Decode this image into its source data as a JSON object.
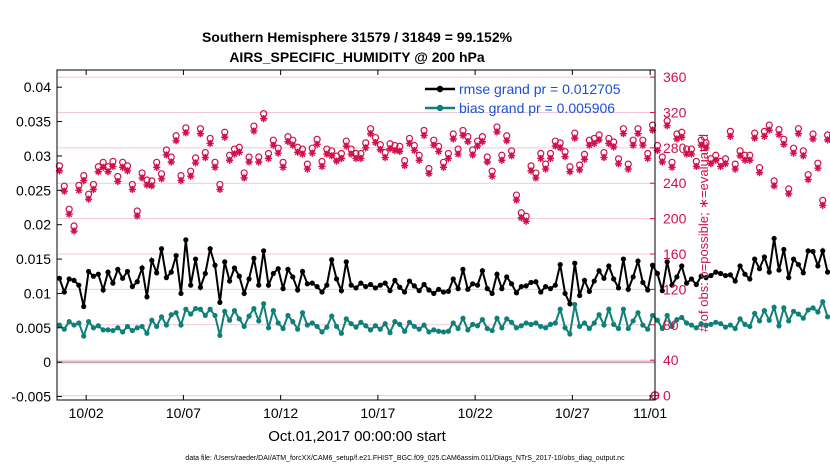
{
  "chart_data": {
    "type": "line",
    "title": "Southern Hemisphere 31579 / 31849 = 99.152%",
    "subtitle": "AIRS_SPECIFIC_HUMIDITY @ 200 hPa",
    "xlabel": "Oct.01,2017 00:00:00 start",
    "ylabel_right": "# of obs: o=possible; ∗=evaluated",
    "footer": "data file: /Users/raeder/DAI/ATM_forcXX/CAM6_setup/f.e21.FHIST_BGC.f09_025.CAM6assim.011/Diags_NTrS_2017-10/obs_diag_output.nc",
    "xlim": [
      0.5,
      31.25
    ],
    "ylim_left": [
      -0.0055,
      0.0425
    ],
    "ylim_right": [
      -5,
      368
    ],
    "x_ticks": [
      {
        "value": 2,
        "label": "10/02"
      },
      {
        "value": 7,
        "label": "10/07"
      },
      {
        "value": 12,
        "label": "10/12"
      },
      {
        "value": 17,
        "label": "10/17"
      },
      {
        "value": 22,
        "label": "10/22"
      },
      {
        "value": 27,
        "label": "10/27"
      },
      {
        "value": 31,
        "label": "11/01"
      }
    ],
    "y_ticks_left": [
      {
        "value": 0.04,
        "label": "0.04"
      },
      {
        "value": 0.035,
        "label": "0.035"
      },
      {
        "value": 0.03,
        "label": "0.03"
      },
      {
        "value": 0.025,
        "label": "0.025"
      },
      {
        "value": 0.02,
        "label": "0.02"
      },
      {
        "value": 0.015,
        "label": "0.015"
      },
      {
        "value": 0.01,
        "label": "0.01"
      },
      {
        "value": 0.005,
        "label": "0.005"
      },
      {
        "value": 0,
        "label": "0"
      },
      {
        "value": -0.005,
        "label": "-0.005"
      }
    ],
    "y_ticks_right": [
      {
        "value": 360,
        "label": "360"
      },
      {
        "value": 320,
        "label": "320"
      },
      {
        "value": 280,
        "label": "280"
      },
      {
        "value": 240,
        "label": "240"
      },
      {
        "value": 200,
        "label": "200"
      },
      {
        "value": 160,
        "label": "160"
      },
      {
        "value": 120,
        "label": "120"
      },
      {
        "value": 80,
        "label": "80"
      },
      {
        "value": 40,
        "label": "40"
      },
      {
        "value": 0,
        "label": "0"
      }
    ],
    "x_start": 0.625,
    "x_step": 0.25,
    "series": [
      {
        "name": "rmse",
        "legend": "rmse grand pr = 0.012705",
        "axis": "left",
        "color": "#000000",
        "values": [
          0.0122,
          0.0102,
          0.0121,
          0.0119,
          0.0112,
          0.0081,
          0.0132,
          0.0125,
          0.0128,
          0.0105,
          0.0131,
          0.0115,
          0.0135,
          0.0122,
          0.0132,
          0.011,
          0.0117,
          0.0137,
          0.0095,
          0.0148,
          0.013,
          0.0165,
          0.0123,
          0.0131,
          0.0155,
          0.01,
          0.0178,
          0.0112,
          0.015,
          0.0109,
          0.0129,
          0.0165,
          0.0141,
          0.0087,
          0.0146,
          0.0118,
          0.0137,
          0.0125,
          0.01,
          0.0121,
          0.0151,
          0.0112,
          0.0162,
          0.0112,
          0.0129,
          0.0136,
          0.0107,
          0.0135,
          0.0124,
          0.0105,
          0.0132,
          0.0114,
          0.0115,
          0.011,
          0.0102,
          0.0112,
          0.0149,
          0.0121,
          0.0104,
          0.0146,
          0.0112,
          0.0108,
          0.0115,
          0.011,
          0.0113,
          0.0108,
          0.0112,
          0.0115,
          0.0104,
          0.0119,
          0.0109,
          0.0102,
          0.0118,
          0.0111,
          0.0104,
          0.0113,
          0.0105,
          0.01,
          0.0106,
          0.0102,
          0.0103,
          0.0121,
          0.0107,
          0.0135,
          0.0106,
          0.0114,
          0.0112,
          0.0133,
          0.0107,
          0.01,
          0.0128,
          0.0107,
          0.0124,
          0.0114,
          0.0101,
          0.011,
          0.0111,
          0.0116,
          0.0117,
          0.0102,
          0.011,
          0.0107,
          0.0112,
          0.0142,
          0.01,
          0.0085,
          0.0144,
          0.0097,
          0.0119,
          0.0103,
          0.0118,
          0.0133,
          0.0122,
          0.014,
          0.0121,
          0.0108,
          0.015,
          0.0106,
          0.0124,
          0.0147,
          0.0116,
          0.0105,
          0.0141,
          0.0129,
          0.0104,
          0.0146,
          0.0112,
          0.0124,
          0.014,
          0.0115,
          0.0121,
          0.0113,
          0.0125,
          0.0123,
          0.0126,
          0.0131,
          0.0129,
          0.0126,
          0.0127,
          0.0118,
          0.014,
          0.0128,
          0.0121,
          0.015,
          0.0136,
          0.0153,
          0.0131,
          0.018,
          0.0134,
          0.0164,
          0.0123,
          0.015,
          0.0142,
          0.013,
          0.0162,
          0.0161,
          0.014,
          0.0162,
          0.0131
        ]
      },
      {
        "name": "bias",
        "legend": "bias grand pr = 0.005906",
        "axis": "left",
        "color": "#0f8079",
        "values": [
          0.0054,
          0.0048,
          0.0059,
          0.0054,
          0.0057,
          0.0038,
          0.0059,
          0.005,
          0.0053,
          0.0047,
          0.0047,
          0.0046,
          0.005,
          0.0044,
          0.0052,
          0.0046,
          0.005,
          0.0052,
          0.0042,
          0.0061,
          0.0052,
          0.0066,
          0.0054,
          0.0069,
          0.0072,
          0.0054,
          0.0077,
          0.007,
          0.0078,
          0.0077,
          0.0068,
          0.0077,
          0.0068,
          0.0039,
          0.0074,
          0.0061,
          0.0075,
          0.0063,
          0.0052,
          0.0067,
          0.0078,
          0.006,
          0.0085,
          0.005,
          0.0075,
          0.0057,
          0.0049,
          0.0068,
          0.0059,
          0.0048,
          0.0072,
          0.0054,
          0.0057,
          0.0052,
          0.0044,
          0.0051,
          0.0067,
          0.0052,
          0.0042,
          0.0063,
          0.0056,
          0.0051,
          0.0058,
          0.0053,
          0.0047,
          0.0053,
          0.0048,
          0.0056,
          0.0043,
          0.0059,
          0.0055,
          0.0045,
          0.0058,
          0.0052,
          0.0048,
          0.0054,
          0.0044,
          0.0047,
          0.0045,
          0.0044,
          0.0045,
          0.0057,
          0.0049,
          0.0064,
          0.0047,
          0.0055,
          0.0053,
          0.0062,
          0.0049,
          0.0046,
          0.0064,
          0.005,
          0.0063,
          0.0058,
          0.005,
          0.0053,
          0.0057,
          0.0055,
          0.0057,
          0.0052,
          0.005,
          0.0055,
          0.0057,
          0.0077,
          0.005,
          0.0041,
          0.0084,
          0.0052,
          0.0057,
          0.0049,
          0.0057,
          0.0069,
          0.0054,
          0.0077,
          0.0055,
          0.0049,
          0.0077,
          0.0049,
          0.006,
          0.0072,
          0.0054,
          0.0048,
          0.0068,
          0.0061,
          0.0049,
          0.0068,
          0.0052,
          0.0062,
          0.0065,
          0.0057,
          0.0054,
          0.005,
          0.0056,
          0.0054,
          0.0055,
          0.0058,
          0.0056,
          0.0051,
          0.0054,
          0.0049,
          0.0063,
          0.0055,
          0.0052,
          0.0071,
          0.006,
          0.0075,
          0.0061,
          0.008,
          0.0053,
          0.0079,
          0.006,
          0.0074,
          0.007,
          0.0064,
          0.0076,
          0.0079,
          0.0073,
          0.0088,
          0.0066
        ]
      }
    ],
    "obs_possible": {
      "axis": "right",
      "color": "#d0104c",
      "marker": "o",
      "values": [
        254,
        231,
        205,
        186,
        232,
        243,
        222,
        233,
        253,
        258,
        253,
        259,
        242,
        258,
        254,
        233,
        203,
        246,
        238,
        237,
        258,
        245,
        272,
        264,
        288,
        243,
        297,
        248,
        263,
        296,
        269,
        285,
        258,
        233,
        292,
        266,
        273,
        275,
        246,
        264,
        299,
        264,
        313,
        268,
        283,
        274,
        258,
        287,
        283,
        275,
        273,
        256,
        274,
        284,
        259,
        273,
        271,
        265,
        268,
        282,
        273,
        268,
        268,
        280,
        296,
        286,
        278,
        269,
        279,
        277,
        276,
        260,
        285,
        277,
        266,
        294,
        251,
        283,
        276,
        258,
        268,
        290,
        273,
        294,
        287,
        272,
        282,
        287,
        264,
        248,
        298,
        266,
        288,
        271,
        221,
        201,
        197,
        254,
        246,
        268,
        256,
        268,
        282,
        280,
        270,
        253,
        291,
        255,
        267,
        283,
        285,
        289,
        269,
        285,
        281,
        262,
        296,
        256,
        283,
        296,
        283,
        268,
        300,
        277,
        264,
        305,
        258,
        290,
        292,
        273,
        273,
        259,
        283,
        280,
        262,
        266,
        259,
        262,
        293,
        256,
        271,
        266,
        266,
        291,
        252,
        293,
        300,
        237,
        295,
        284,
        228,
        274,
        296,
        271,
        244,
        290,
        257,
        215,
        289,
        288
      ]
    },
    "obs_evaluated": {
      "axis": "right",
      "color": "#d0104c",
      "marker": "*",
      "values": [
        254,
        231,
        205,
        186,
        232,
        243,
        222,
        233,
        253,
        258,
        253,
        259,
        242,
        258,
        254,
        233,
        203,
        246,
        238,
        237,
        258,
        245,
        272,
        264,
        288,
        243,
        297,
        248,
        263,
        296,
        269,
        285,
        258,
        233,
        292,
        266,
        273,
        275,
        246,
        264,
        299,
        264,
        313,
        268,
        283,
        274,
        258,
        287,
        283,
        275,
        273,
        256,
        274,
        284,
        259,
        273,
        271,
        265,
        268,
        282,
        273,
        268,
        268,
        280,
        296,
        286,
        278,
        269,
        279,
        277,
        276,
        260,
        285,
        277,
        266,
        294,
        251,
        283,
        276,
        258,
        268,
        290,
        273,
        294,
        287,
        272,
        282,
        287,
        264,
        248,
        298,
        266,
        288,
        271,
        221,
        201,
        197,
        254,
        246,
        268,
        256,
        268,
        282,
        280,
        270,
        253,
        291,
        255,
        267,
        283,
        285,
        289,
        269,
        285,
        281,
        262,
        296,
        256,
        283,
        296,
        283,
        268,
        300,
        277,
        264,
        305,
        258,
        290,
        292,
        273,
        273,
        259,
        283,
        280,
        262,
        266,
        259,
        262,
        293,
        256,
        271,
        266,
        266,
        291,
        252,
        293,
        300,
        237,
        295,
        284,
        228,
        274,
        296,
        271,
        244,
        290,
        257,
        215,
        289,
        288
      ]
    },
    "obs_end_point": {
      "x": 31.25,
      "value": 0
    }
  }
}
